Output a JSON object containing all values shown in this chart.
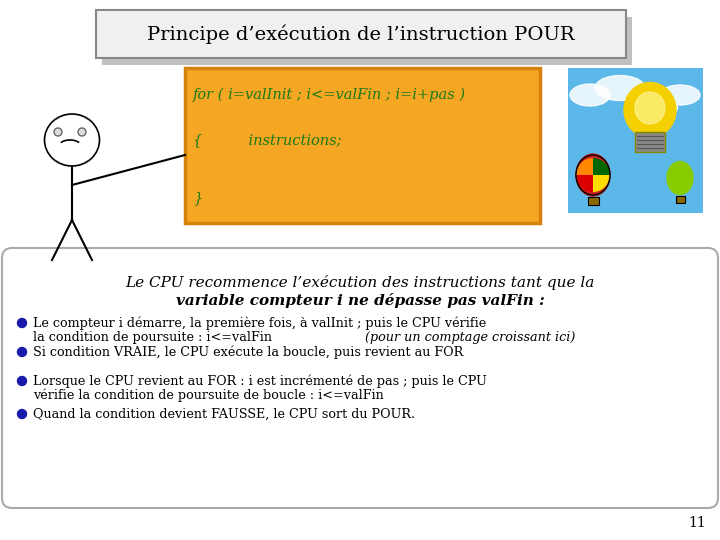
{
  "title": "Principe d’exécution de l’instruction POUR",
  "bg_color": "#ffffff",
  "title_box_color": "#f0f0f0",
  "title_box_edge": "#888888",
  "code_box_bg": "#f5a623",
  "code_box_edge": "#d4820a",
  "code_line1": "for ( i=valInit ; i<=valFin ; i=i+pas )",
  "code_line2": "{          instructions;",
  "code_line3": "}",
  "bubble_bg": "#ffffff",
  "bubble_edge": "#aaaaaa",
  "bullet1_line1": "Le compteur i démarre, la première fois, à valInit ; puis le CPU vérifie",
  "bullet1_line2": "la condition de poursuite : i<=valFin ",
  "bullet1_italic": "(pour un comptage croissant ici)",
  "bullet2": "Si condition VRAIE, le CPU exécute la boucle, puis revient au FOR",
  "bullet3_line1": "Lorsque le CPU revient au FOR : i est incrémenté de pas ; puis le CPU",
  "bullet3_line2": "vérifie la condition de poursuite de boucle : i<=valFin",
  "bullet4": "Quand la condition devient FAUSSE, le CPU sort du POUR.",
  "page_num": "11",
  "code_color": "#1a7a1a",
  "text_color": "#000000",
  "bullet_color": "#1a1aaa",
  "title_fontsize": 14,
  "code_fontsize": 10.5,
  "bubble_title_fontsize": 11,
  "bullet_fontsize": 9.2
}
